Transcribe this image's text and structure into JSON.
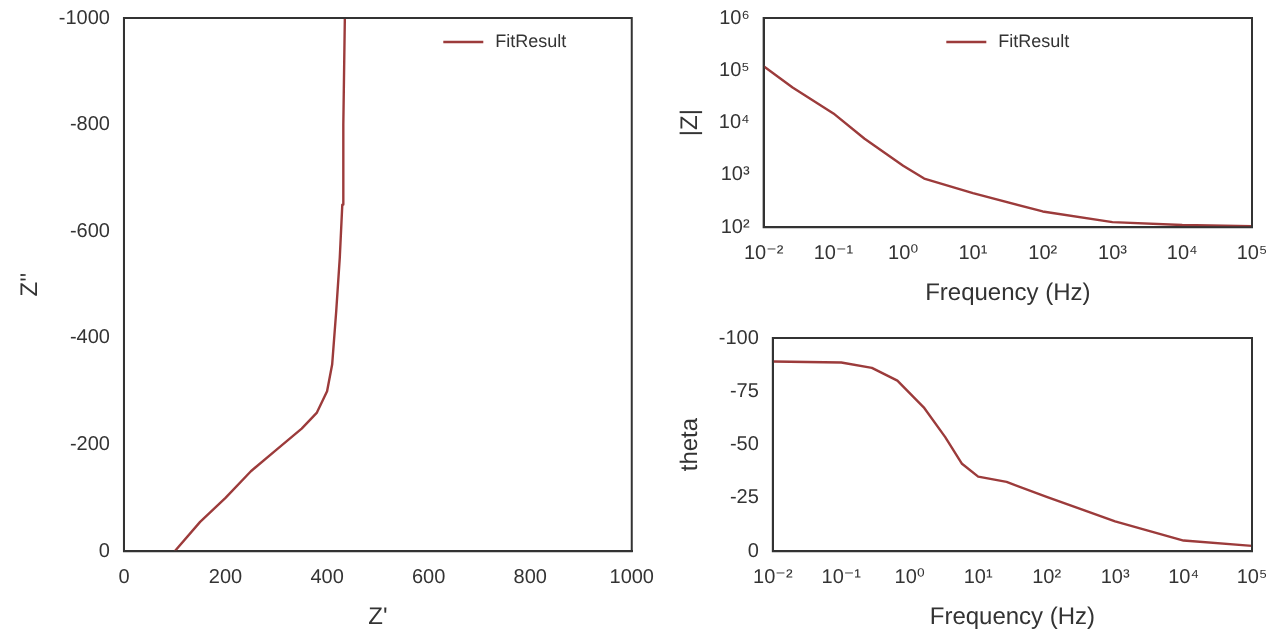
{
  "chart_data": [
    {
      "type": "line",
      "xlabel": "Z'",
      "ylabel": "Z''",
      "xlim": [
        0,
        1000
      ],
      "ylim": [
        0,
        -1000
      ],
      "xticks": [
        0,
        200,
        400,
        600,
        800,
        1000
      ],
      "yticks": [
        0,
        -200,
        -400,
        -600,
        -800,
        -1000
      ],
      "grid": false,
      "legend": "top right",
      "marker": "none",
      "line_style": "solid",
      "series": [
        {
          "name": "FitResult",
          "color": "#9c3b3b",
          "x": [
            100,
            150,
            200,
            250,
            300,
            350,
            380,
            400,
            410,
            418,
            425,
            430,
            432,
            435
          ],
          "values": [
            0,
            -55,
            -100,
            -150,
            -190,
            -230,
            -260,
            -300,
            -350,
            -450,
            -550,
            -650,
            -800,
            -1000
          ]
        }
      ]
    },
    {
      "type": "line",
      "xlabel": "Frequency (Hz)",
      "ylabel": "|Z|",
      "log": "xy",
      "xlim": [
        0.01,
        100000
      ],
      "ylim": [
        100,
        1000000
      ],
      "xticks": [
        {
          "value": 0.01,
          "label": "10⁻²"
        },
        {
          "value": 0.1,
          "label": "10⁻¹"
        },
        {
          "value": 1,
          "label": "10⁰"
        },
        {
          "value": 10,
          "label": "10¹"
        },
        {
          "value": 100,
          "label": "10²"
        },
        {
          "value": 1000,
          "label": "10³"
        },
        {
          "value": 10000,
          "label": "10⁴"
        },
        {
          "value": 100000,
          "label": "10⁵"
        }
      ],
      "yticks": [
        {
          "value": 100,
          "label": "10²"
        },
        {
          "value": 1000,
          "label": "10³"
        },
        {
          "value": 10000,
          "label": "10⁴"
        },
        {
          "value": 100000,
          "label": "10⁵"
        },
        {
          "value": 1000000,
          "label": "10⁶"
        }
      ],
      "grid": false,
      "legend": "top",
      "marker": "none",
      "line_style": "solid",
      "series": [
        {
          "name": "FitResult",
          "color": "#9c3b3b",
          "x": [
            0.01,
            0.026,
            0.1,
            0.28,
            1,
            2,
            10,
            100,
            1000,
            10000,
            100000
          ],
          "values": [
            120000,
            47000,
            15000,
            4900,
            1500,
            850,
            450,
            200,
            125,
            110,
            105
          ]
        }
      ]
    },
    {
      "type": "line",
      "xlabel": "Frequency (Hz)",
      "ylabel": "theta",
      "log": "x",
      "xlim": [
        0.01,
        100000
      ],
      "ylim": [
        0,
        -100
      ],
      "xticks": [
        {
          "value": 0.01,
          "label": "10⁻²"
        },
        {
          "value": 0.1,
          "label": "10⁻¹"
        },
        {
          "value": 1,
          "label": "10⁰"
        },
        {
          "value": 10,
          "label": "10¹"
        },
        {
          "value": 100,
          "label": "10²"
        },
        {
          "value": 1000,
          "label": "10³"
        },
        {
          "value": 10000,
          "label": "10⁴"
        },
        {
          "value": 100000,
          "label": "10⁵"
        }
      ],
      "yticks": [
        0,
        -25,
        -50,
        -75,
        -100
      ],
      "grid": false,
      "marker": "none",
      "line_style": "solid",
      "series": [
        {
          "color": "#9c3b3b",
          "x": [
            0.01,
            0.1,
            0.28,
            0.66,
            1.6,
            3.3,
            5.8,
            10,
            26,
            100,
            1000,
            10000,
            100000
          ],
          "values": [
            -89,
            -88.5,
            -86,
            -80,
            -67.5,
            -53.5,
            -41,
            -35,
            -32.5,
            -25.5,
            -14,
            -5,
            -2.5
          ]
        }
      ]
    }
  ]
}
